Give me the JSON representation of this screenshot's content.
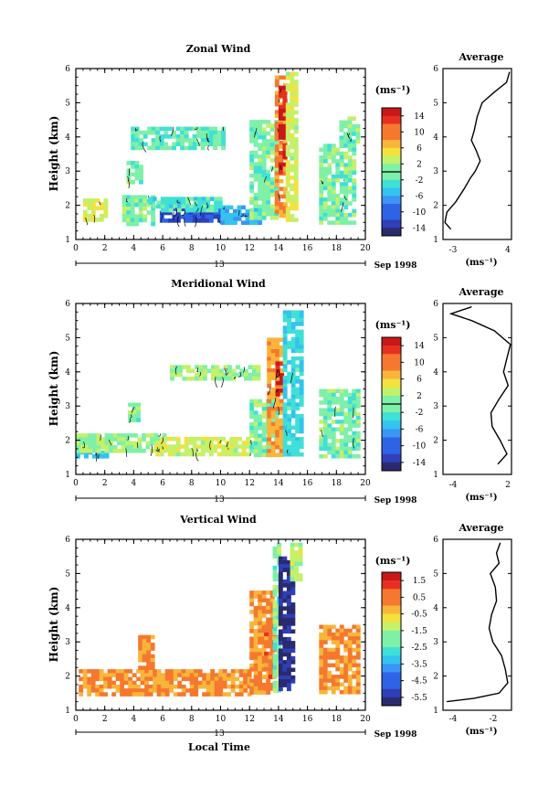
{
  "panels": [
    {
      "title": "Zonal Wind",
      "ylabel": "Height (km)",
      "unit": "(ms⁻¹)",
      "date_label": "Sep 1998",
      "day_label": "13",
      "cbar_ticks": [
        "14",
        "10",
        "6",
        "2",
        "-2",
        "-6",
        "-10",
        "-14"
      ],
      "avg_title": "Average",
      "avg_xticks": [
        "-3",
        "4"
      ],
      "avg_unit": "(ms⁻¹)"
    },
    {
      "title": "Meridional Wind",
      "ylabel": "Height (km)",
      "unit": "(ms⁻¹)",
      "date_label": "Sep 1998",
      "day_label": "13",
      "cbar_ticks": [
        "14",
        "10",
        "6",
        "2",
        "-2",
        "-6",
        "-10",
        "-14"
      ],
      "avg_title": "Average",
      "avg_xticks": [
        "-4",
        "2"
      ],
      "avg_unit": "(ms⁻¹)"
    },
    {
      "title": "Vertical Wind",
      "ylabel": "Height (km)",
      "unit": "(ms⁻¹)",
      "date_label": "Sep 1998",
      "day_label": "13",
      "xlabel": "Local Time",
      "cbar_ticks": [
        "1.5",
        "0.5",
        "-0.5",
        "-1.5",
        "-2.5",
        "-3.5",
        "-4.5",
        "-5.5"
      ],
      "avg_title": "Average",
      "avg_xticks": [
        "-4",
        "-2"
      ],
      "avg_unit": "(ms⁻¹)"
    }
  ],
  "chart_data": [
    {
      "type": "heatmap",
      "title": "Zonal Wind",
      "xlabel": "",
      "ylabel": "Height (km)",
      "xlim": [
        0,
        20
      ],
      "ylim": [
        1,
        6
      ],
      "xticks": [
        0,
        2,
        4,
        6,
        8,
        10,
        12,
        14,
        16,
        18,
        20
      ],
      "yticks": [
        1,
        2,
        3,
        4,
        5,
        6
      ],
      "colorbar_range": [
        -16,
        16
      ],
      "colorbar_ticks": [
        14,
        10,
        6,
        2,
        -2,
        -6,
        -10,
        -14
      ],
      "contour_level": 0,
      "regions": [
        {
          "x": [
            0.5,
            2.0
          ],
          "y": [
            1.55,
            2.2
          ],
          "value": 4
        },
        {
          "x": [
            3.2,
            5.2
          ],
          "y": [
            1.5,
            2.3
          ],
          "value": 0
        },
        {
          "x": [
            5.8,
            10.0
          ],
          "y": [
            1.55,
            1.95
          ],
          "value": -11
        },
        {
          "x": [
            10.0,
            12.8
          ],
          "y": [
            1.5,
            2.0
          ],
          "value": -6
        },
        {
          "x": [
            5.0,
            10.0
          ],
          "y": [
            1.9,
            2.25
          ],
          "value": -2
        },
        {
          "x": [
            3.5,
            4.4
          ],
          "y": [
            2.7,
            3.3
          ],
          "value": 0
        },
        {
          "x": [
            3.8,
            10.2
          ],
          "y": [
            3.7,
            4.3
          ],
          "value": -1
        },
        {
          "x": [
            12.0,
            13.8
          ],
          "y": [
            1.6,
            4.5
          ],
          "value": 0
        },
        {
          "x": [
            13.75,
            14.5
          ],
          "y": [
            1.7,
            5.8
          ],
          "value": 9
        },
        {
          "x": [
            14.0,
            14.3
          ],
          "y": [
            3.0,
            5.5
          ],
          "value": 14
        },
        {
          "x": [
            14.5,
            15.3
          ],
          "y": [
            1.6,
            5.9
          ],
          "value": 3
        },
        {
          "x": [
            16.8,
            19.2
          ],
          "y": [
            1.5,
            3.8
          ],
          "value": 0
        },
        {
          "x": [
            18.2,
            19.5
          ],
          "y": [
            3.8,
            4.6
          ],
          "value": 0
        }
      ],
      "average_profile": {
        "xlim": [
          -3,
          4
        ],
        "height": [
          1.3,
          1.5,
          1.8,
          2.1,
          2.5,
          2.8,
          3.0,
          3.3,
          3.6,
          3.9,
          4.2,
          4.6,
          5.0,
          5.3,
          5.6,
          5.9
        ],
        "value": [
          -2.2,
          -2.8,
          -2.6,
          -1.7,
          -0.8,
          -0.2,
          0.3,
          0.8,
          0.4,
          -0.1,
          0.2,
          0.5,
          1.0,
          2.2,
          3.5,
          3.8
        ]
      }
    },
    {
      "type": "heatmap",
      "title": "Meridional Wind",
      "xlabel": "",
      "ylabel": "Height (km)",
      "xlim": [
        0,
        20
      ],
      "ylim": [
        1,
        6
      ],
      "xticks": [
        0,
        2,
        4,
        6,
        8,
        10,
        12,
        14,
        16,
        18,
        20
      ],
      "yticks": [
        1,
        2,
        3,
        4,
        5,
        6
      ],
      "colorbar_range": [
        -16,
        16
      ],
      "colorbar_ticks": [
        14,
        10,
        6,
        2,
        -2,
        -6,
        -10,
        -14
      ],
      "contour_level": 0,
      "regions": [
        {
          "x": [
            0.0,
            2.0
          ],
          "y": [
            1.55,
            1.7
          ],
          "value": -4
        },
        {
          "x": [
            0.0,
            6.0
          ],
          "y": [
            1.7,
            2.2
          ],
          "value": 1
        },
        {
          "x": [
            5.5,
            12.5
          ],
          "y": [
            1.6,
            2.1
          ],
          "value": 3
        },
        {
          "x": [
            12.0,
            13.8
          ],
          "y": [
            1.6,
            3.2
          ],
          "value": 0
        },
        {
          "x": [
            3.6,
            4.3
          ],
          "y": [
            2.6,
            3.1
          ],
          "value": 0
        },
        {
          "x": [
            6.5,
            12.5
          ],
          "y": [
            3.8,
            4.2
          ],
          "value": 1
        },
        {
          "x": [
            13.2,
            14.3
          ],
          "y": [
            1.6,
            5.0
          ],
          "value": 8
        },
        {
          "x": [
            13.8,
            14.2
          ],
          "y": [
            3.3,
            4.3
          ],
          "value": 14
        },
        {
          "x": [
            14.3,
            15.5
          ],
          "y": [
            1.6,
            5.8
          ],
          "value": -3
        },
        {
          "x": [
            16.8,
            19.6
          ],
          "y": [
            1.5,
            3.5
          ],
          "value": 0
        }
      ],
      "average_profile": {
        "xlim": [
          -4,
          2
        ],
        "height": [
          1.3,
          1.6,
          2.0,
          2.4,
          2.8,
          3.2,
          3.6,
          4.0,
          4.4,
          4.8,
          5.2,
          5.5,
          5.7,
          5.9
        ],
        "value": [
          0.8,
          1.6,
          1.0,
          0.3,
          0.2,
          0.9,
          1.7,
          1.3,
          1.6,
          1.9,
          0.5,
          -1.5,
          -3.3,
          -1.5
        ]
      }
    },
    {
      "type": "heatmap",
      "title": "Vertical Wind",
      "xlabel": "Local Time",
      "ylabel": "Height (km)",
      "xlim": [
        0,
        20
      ],
      "ylim": [
        1,
        6
      ],
      "xticks": [
        0,
        2,
        4,
        6,
        8,
        10,
        12,
        14,
        16,
        18,
        20
      ],
      "yticks": [
        1,
        2,
        3,
        4,
        5,
        6
      ],
      "colorbar_range": [
        -6,
        2
      ],
      "colorbar_ticks": [
        1.5,
        0.5,
        -0.5,
        -1.5,
        -2.5,
        -3.5,
        -4.5,
        -5.5
      ],
      "regions": [
        {
          "x": [
            0.2,
            12.0
          ],
          "y": [
            1.5,
            2.2
          ],
          "value": 0.2
        },
        {
          "x": [
            4.3,
            5.2
          ],
          "y": [
            2.2,
            3.2
          ],
          "value": 0.2
        },
        {
          "x": [
            12.0,
            13.5
          ],
          "y": [
            1.5,
            4.5
          ],
          "value": 0.2
        },
        {
          "x": [
            13.0,
            13.6
          ],
          "y": [
            2.0,
            3.5
          ],
          "value": 0.5
        },
        {
          "x": [
            13.6,
            14.0
          ],
          "y": [
            1.5,
            5.9
          ],
          "value": -2.0
        },
        {
          "x": [
            14.0,
            15.0
          ],
          "y": [
            1.6,
            5.5
          ],
          "value": -5.5
        },
        {
          "x": [
            14.8,
            15.5
          ],
          "y": [
            4.8,
            5.9
          ],
          "value": -1.5
        },
        {
          "x": [
            16.8,
            19.6
          ],
          "y": [
            1.5,
            3.5
          ],
          "value": 0.2
        }
      ],
      "average_profile": {
        "xlim": [
          -5.5,
          0
        ],
        "height": [
          1.25,
          1.35,
          1.5,
          1.8,
          2.2,
          2.6,
          3.0,
          3.4,
          3.8,
          4.2,
          4.6,
          5.0,
          5.3,
          5.6,
          5.9
        ],
        "value": [
          -5.2,
          -3.0,
          -1.0,
          -0.3,
          -0.5,
          -0.8,
          -1.5,
          -1.8,
          -1.6,
          -1.2,
          -1.3,
          -1.7,
          -1.0,
          -1.2,
          -0.9
        ]
      }
    }
  ],
  "colors": {
    "scale": [
      "#2a2a6e",
      "#2e3fb8",
      "#2f63e6",
      "#3a95f5",
      "#33c3ee",
      "#3fe0d6",
      "#7ef0a8",
      "#c4f06a",
      "#f3e23c",
      "#f9b53a",
      "#f5782e",
      "#e63022",
      "#c81818"
    ],
    "contour": "#000000"
  }
}
